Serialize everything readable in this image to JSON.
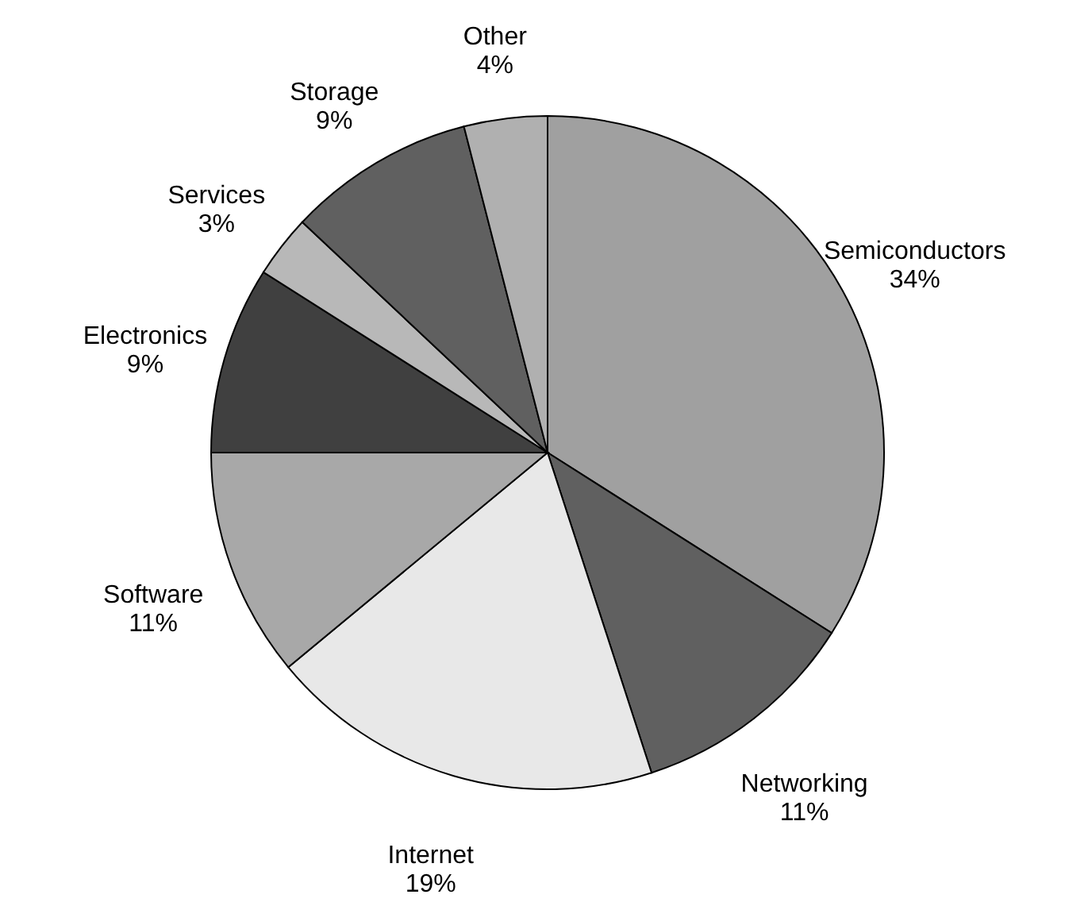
{
  "chart_data": {
    "type": "pie",
    "categories": [
      "Semiconductors",
      "Networking",
      "Internet",
      "Software",
      "Electronics",
      "Services",
      "Storage",
      "Other"
    ],
    "values": [
      34,
      11,
      19,
      11,
      9,
      3,
      9,
      4
    ],
    "value_labels": [
      "34%",
      "11%",
      "19%",
      "11%",
      "9%",
      "3%",
      "9%",
      "4%"
    ],
    "colors": [
      "#a0a0a0",
      "#606060",
      "#e8e8e8",
      "#a8a8a8",
      "#404040",
      "#b8b8b8",
      "#606060",
      "#b0b0b0"
    ]
  }
}
